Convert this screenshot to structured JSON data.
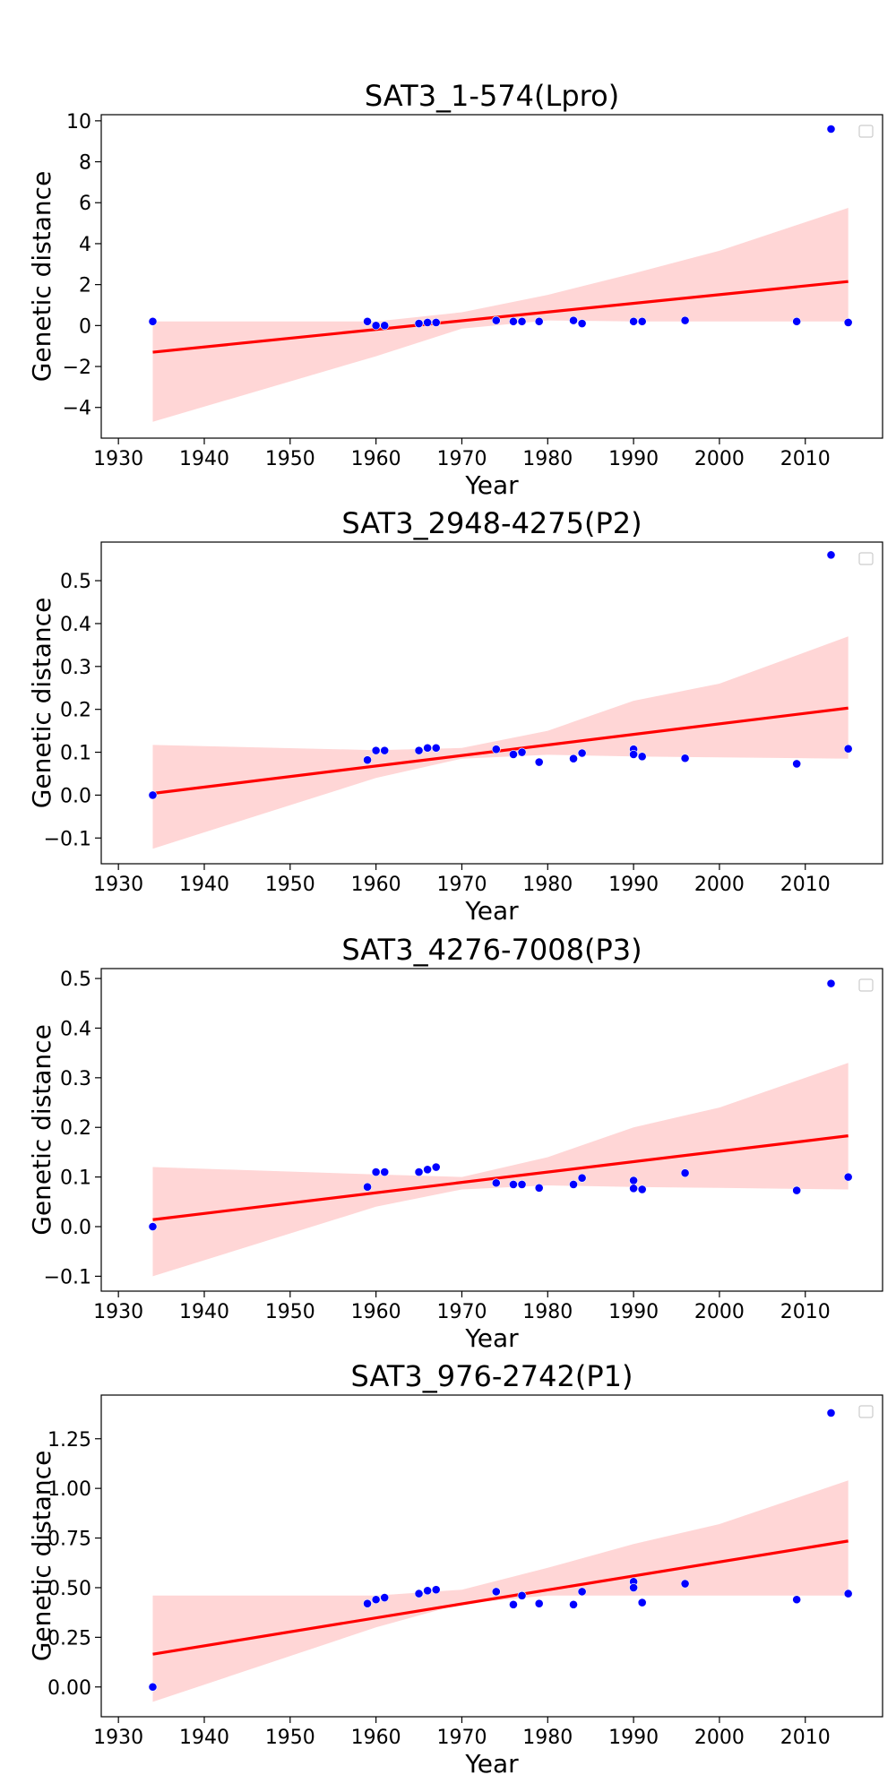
{
  "chart_data": [
    {
      "type": "scatter",
      "title": "SAT3_1-574(Lpro)",
      "xlabel": "Year",
      "ylabel": "Genetic distance",
      "xlim": [
        1928,
        2019
      ],
      "ylim": [
        -5.5,
        10.3
      ],
      "xticks": [
        1930,
        1940,
        1950,
        1960,
        1970,
        1980,
        1990,
        2000,
        2010
      ],
      "yticks": [
        -4,
        -2,
        0,
        2,
        4,
        6,
        8,
        10
      ],
      "ytick_labels": [
        "−4",
        "−2",
        "0",
        "2",
        "4",
        "6",
        "8",
        "10"
      ],
      "legend": "top-right, empty",
      "grid": false,
      "x": [
        1934,
        1959,
        1960,
        1961,
        1965,
        1966,
        1967,
        1974,
        1976,
        1977,
        1979,
        1983,
        1984,
        1990,
        1991,
        1996,
        2009,
        2013,
        2015
      ],
      "y": [
        0.2,
        0.2,
        0.0,
        0.0,
        0.1,
        0.15,
        0.15,
        0.25,
        0.2,
        0.2,
        0.2,
        0.25,
        0.1,
        0.2,
        0.2,
        0.25,
        0.2,
        9.6,
        0.15
      ],
      "fit_line": [
        [
          1934,
          -1.3
        ],
        [
          2015,
          2.15
        ]
      ],
      "ci_band": [
        [
          1934,
          -4.7,
          0.2
        ],
        [
          1960,
          -1.5,
          0.2
        ],
        [
          1970,
          -0.15,
          0.65
        ],
        [
          1980,
          0.25,
          1.5
        ],
        [
          1990,
          0.2,
          2.55
        ],
        [
          2000,
          0.2,
          3.65
        ],
        [
          2015,
          0.2,
          5.75
        ]
      ],
      "point_color": "#0000ff",
      "line_color": "#ff0000",
      "band_color": "#ffd6d6"
    },
    {
      "type": "scatter",
      "title": "SAT3_2948-4275(P2)",
      "xlabel": "Year",
      "ylabel": "Genetic distance",
      "xlim": [
        1928,
        2019
      ],
      "ylim": [
        -0.16,
        0.59
      ],
      "xticks": [
        1930,
        1940,
        1950,
        1960,
        1970,
        1980,
        1990,
        2000,
        2010
      ],
      "yticks": [
        -0.1,
        0.0,
        0.1,
        0.2,
        0.3,
        0.4,
        0.5
      ],
      "ytick_labels": [
        "−0.1",
        "0.0",
        "0.1",
        "0.2",
        "0.3",
        "0.4",
        "0.5"
      ],
      "legend": "top-right, empty",
      "grid": false,
      "x": [
        1934,
        1959,
        1960,
        1961,
        1965,
        1966,
        1967,
        1974,
        1976,
        1977,
        1979,
        1983,
        1984,
        1990,
        1990,
        1991,
        1996,
        2009,
        2013,
        2015
      ],
      "y": [
        0.0,
        0.082,
        0.104,
        0.104,
        0.104,
        0.11,
        0.11,
        0.107,
        0.095,
        0.1,
        0.077,
        0.085,
        0.098,
        0.107,
        0.095,
        0.09,
        0.086,
        0.073,
        0.56,
        0.108
      ],
      "fit_line": [
        [
          1934,
          0.004
        ],
        [
          2015,
          0.203
        ]
      ],
      "ci_band": [
        [
          1934,
          -0.125,
          0.117
        ],
        [
          1960,
          0.04,
          0.105
        ],
        [
          1970,
          0.085,
          0.11
        ],
        [
          1980,
          0.094,
          0.15
        ],
        [
          1990,
          0.09,
          0.22
        ],
        [
          2000,
          0.088,
          0.26
        ],
        [
          2015,
          0.085,
          0.37
        ]
      ],
      "point_color": "#0000ff",
      "line_color": "#ff0000",
      "band_color": "#ffd6d6"
    },
    {
      "type": "scatter",
      "title": "SAT3_4276-7008(P3)",
      "xlabel": "Year",
      "ylabel": "Genetic distance",
      "xlim": [
        1928,
        2019
      ],
      "ylim": [
        -0.13,
        0.52
      ],
      "xticks": [
        1930,
        1940,
        1950,
        1960,
        1970,
        1980,
        1990,
        2000,
        2010
      ],
      "yticks": [
        -0.1,
        0.0,
        0.1,
        0.2,
        0.3,
        0.4,
        0.5
      ],
      "ytick_labels": [
        "−0.1",
        "0.0",
        "0.1",
        "0.2",
        "0.3",
        "0.4",
        "0.5"
      ],
      "legend": "top-right, empty",
      "grid": false,
      "x": [
        1934,
        1959,
        1960,
        1961,
        1965,
        1966,
        1967,
        1974,
        1976,
        1977,
        1979,
        1983,
        1984,
        1990,
        1990,
        1991,
        1996,
        2009,
        2013,
        2015
      ],
      "y": [
        0.0,
        0.08,
        0.11,
        0.11,
        0.11,
        0.115,
        0.12,
        0.088,
        0.085,
        0.085,
        0.078,
        0.085,
        0.098,
        0.093,
        0.077,
        0.075,
        0.108,
        0.073,
        0.49,
        0.1
      ],
      "fit_line": [
        [
          1934,
          0.014
        ],
        [
          2015,
          0.183
        ]
      ],
      "ci_band": [
        [
          1934,
          -0.1,
          0.12
        ],
        [
          1960,
          0.04,
          0.105
        ],
        [
          1970,
          0.075,
          0.1
        ],
        [
          1980,
          0.083,
          0.14
        ],
        [
          1990,
          0.08,
          0.2
        ],
        [
          2000,
          0.078,
          0.24
        ],
        [
          2015,
          0.075,
          0.33
        ]
      ],
      "point_color": "#0000ff",
      "line_color": "#ff0000",
      "band_color": "#ffd6d6"
    },
    {
      "type": "scatter",
      "title": "SAT3_976-2742(P1)",
      "xlabel": "Year",
      "ylabel": "Genetic distance",
      "xlim": [
        1928,
        2019
      ],
      "ylim": [
        -0.15,
        1.47
      ],
      "xticks": [
        1930,
        1940,
        1950,
        1960,
        1970,
        1980,
        1990,
        2000,
        2010
      ],
      "yticks": [
        0.0,
        0.25,
        0.5,
        0.75,
        1.0,
        1.25
      ],
      "ytick_labels": [
        "0.00",
        "0.25",
        "0.50",
        "0.75",
        "1.00",
        "1.25"
      ],
      "legend": "top-right, empty",
      "grid": false,
      "x": [
        1934,
        1959,
        1960,
        1961,
        1965,
        1966,
        1967,
        1974,
        1976,
        1977,
        1979,
        1983,
        1984,
        1990,
        1990,
        1991,
        1996,
        2009,
        2013,
        2015
      ],
      "y": [
        0.0,
        0.42,
        0.44,
        0.45,
        0.47,
        0.485,
        0.49,
        0.48,
        0.415,
        0.46,
        0.42,
        0.415,
        0.48,
        0.53,
        0.5,
        0.425,
        0.52,
        0.44,
        1.38,
        0.47
      ],
      "fit_line": [
        [
          1934,
          0.165
        ],
        [
          2015,
          0.735
        ]
      ],
      "ci_band": [
        [
          1934,
          -0.075,
          0.46
        ],
        [
          1960,
          0.3,
          0.46
        ],
        [
          1970,
          0.42,
          0.49
        ],
        [
          1980,
          0.46,
          0.6
        ],
        [
          1990,
          0.46,
          0.72
        ],
        [
          2000,
          0.46,
          0.82
        ],
        [
          2015,
          0.46,
          1.04
        ]
      ],
      "point_color": "#0000ff",
      "line_color": "#ff0000",
      "band_color": "#ffd6d6"
    }
  ]
}
